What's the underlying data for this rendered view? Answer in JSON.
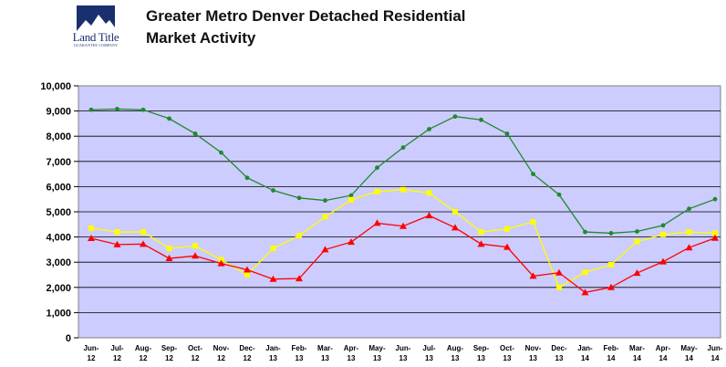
{
  "header": {
    "logo_text": "Land Title",
    "logo_subtext": "GUARANTEE COMPANY",
    "title_line1": "Greater Metro Denver Detached Residential",
    "title_line2": "Market Activity"
  },
  "colors": {
    "plot_background": "#ccccff",
    "series_green": "#1f8a2c",
    "series_yellow": "#ffff00",
    "series_red": "#ff0000"
  },
  "chart_data": {
    "type": "line",
    "title": "",
    "xlabel": "",
    "ylabel": "",
    "ylim": [
      0,
      10000
    ],
    "yticks": [
      "0",
      "1,000",
      "2,000",
      "3,000",
      "4,000",
      "5,000",
      "6,000",
      "7,000",
      "8,000",
      "9,000",
      "10,000"
    ],
    "grid": true,
    "legend": "none",
    "categories": [
      [
        "Jun-",
        "12"
      ],
      [
        "Jul-",
        "12"
      ],
      [
        "Aug-",
        "12"
      ],
      [
        "Sep-",
        "12"
      ],
      [
        "Oct-",
        "12"
      ],
      [
        "Nov-",
        "12"
      ],
      [
        "Dec-",
        "12"
      ],
      [
        "Jan-",
        "13"
      ],
      [
        "Feb-",
        "13"
      ],
      [
        "Mar-",
        "13"
      ],
      [
        "Apr-",
        "13"
      ],
      [
        "May-",
        "13"
      ],
      [
        "Jun-",
        "13"
      ],
      [
        "Jul-",
        "13"
      ],
      [
        "Aug-",
        "13"
      ],
      [
        "Sep-",
        "13"
      ],
      [
        "Oct-",
        "13"
      ],
      [
        "Nov-",
        "13"
      ],
      [
        "Dec-",
        "13"
      ],
      [
        "Jan-",
        "14"
      ],
      [
        "Feb-",
        "14"
      ],
      [
        "Mar-",
        "14"
      ],
      [
        "Apr-",
        "14"
      ],
      [
        "May-",
        "14"
      ],
      [
        "Jun-",
        "14"
      ]
    ],
    "series": [
      {
        "color": "#1f8a2c",
        "marker": "circle",
        "values": [
          9050,
          9080,
          9050,
          8700,
          8100,
          7350,
          6350,
          5850,
          5550,
          5450,
          5650,
          6750,
          7550,
          8280,
          8780,
          8650,
          8100,
          6500,
          5680,
          4200,
          4150,
          4220,
          4460,
          5120,
          5500
        ]
      },
      {
        "color": "#ffff00",
        "marker": "square",
        "values": [
          4350,
          4200,
          4200,
          3550,
          3650,
          3100,
          2500,
          3550,
          4050,
          4800,
          5480,
          5800,
          5880,
          5750,
          5000,
          4200,
          4320,
          4600,
          2000,
          2600,
          2900,
          3820,
          4100,
          4200,
          4150
        ]
      },
      {
        "color": "#ff0000",
        "marker": "triangle",
        "values": [
          3950,
          3700,
          3720,
          3150,
          3250,
          2950,
          2700,
          2330,
          2350,
          3500,
          3800,
          4550,
          4430,
          4850,
          4370,
          3720,
          3600,
          2450,
          2580,
          1800,
          2000,
          2570,
          3020,
          3580,
          3960
        ]
      }
    ]
  }
}
